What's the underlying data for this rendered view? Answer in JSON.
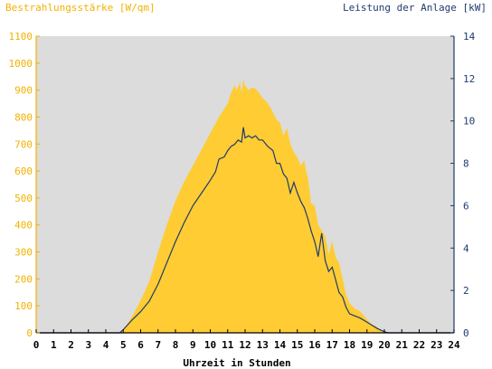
{
  "colors": {
    "irradiance": "#ffcc33",
    "power": "#1f3a6e",
    "plot_bg": "#dcdcdc",
    "left_axis_text": "#f2b100",
    "right_axis_text": "#1f3a6e",
    "x_axis_text": "#000000"
  },
  "chart_data": {
    "type": "area",
    "title": "",
    "xlabel": "Uhrzeit in Stunden",
    "ylabel_left": "Bestrahlungsstärke [W/qm]",
    "ylabel_right": "Leistung der Anlage [kW]",
    "xlim": [
      0,
      24
    ],
    "ylim_left": [
      0,
      1100
    ],
    "ylim_right": [
      0,
      14
    ],
    "x_ticks": [
      "0",
      "1",
      "2",
      "3",
      "4",
      "5",
      "6",
      "7",
      "8",
      "9",
      "10",
      "11",
      "12",
      "13",
      "14",
      "15",
      "16",
      "17",
      "18",
      "19",
      "20",
      "21",
      "22",
      "23",
      "24"
    ],
    "y_ticks_left": [
      "0",
      "100",
      "200",
      "300",
      "400",
      "500",
      "600",
      "700",
      "800",
      "900",
      "1000",
      "1100"
    ],
    "y_ticks_right": [
      "0",
      "2",
      "4",
      "6",
      "8",
      "10",
      "12",
      "14"
    ],
    "grid": false,
    "series": [
      {
        "name": "Bestrahlungsstärke [W/qm]",
        "axis": "left",
        "style": "area",
        "x": [
          0,
          4.8,
          5.0,
          5.2,
          5.5,
          6.0,
          6.5,
          7.0,
          7.5,
          8.0,
          8.5,
          9.0,
          9.5,
          10.0,
          10.5,
          10.8,
          11.0,
          11.2,
          11.4,
          11.5,
          11.6,
          11.7,
          11.8,
          11.9,
          12.0,
          12.2,
          12.4,
          12.6,
          12.8,
          13.0,
          13.2,
          13.5,
          13.8,
          14.0,
          14.2,
          14.4,
          14.6,
          14.8,
          15.0,
          15.2,
          15.4,
          15.5,
          15.6,
          15.8,
          16.0,
          16.2,
          16.4,
          16.6,
          16.8,
          17.0,
          17.2,
          17.4,
          17.6,
          17.8,
          18.0,
          18.3,
          18.6,
          19.0,
          19.3,
          19.5,
          19.7,
          20.0,
          20.2,
          20.5,
          24
        ],
        "y": [
          0,
          0,
          15,
          30,
          60,
          120,
          190,
          300,
          400,
          490,
          560,
          620,
          680,
          740,
          800,
          830,
          850,
          890,
          920,
          900,
          910,
          930,
          890,
          940,
          915,
          900,
          910,
          905,
          890,
          870,
          860,
          830,
          790,
          780,
          730,
          760,
          700,
          670,
          650,
          620,
          640,
          600,
          580,
          480,
          470,
          400,
          380,
          360,
          290,
          340,
          280,
          260,
          200,
          140,
          110,
          90,
          80,
          50,
          30,
          25,
          15,
          5,
          0,
          0,
          0
        ]
      },
      {
        "name": "Leistung der Anlage [kW]",
        "axis": "right",
        "style": "line",
        "x": [
          0,
          4.8,
          5.0,
          5.5,
          6.0,
          6.5,
          7.0,
          7.5,
          8.0,
          8.5,
          9.0,
          9.5,
          10.0,
          10.3,
          10.5,
          10.8,
          11.0,
          11.2,
          11.4,
          11.6,
          11.8,
          11.9,
          12.0,
          12.2,
          12.4,
          12.6,
          12.8,
          13.0,
          13.3,
          13.6,
          13.8,
          14.0,
          14.2,
          14.4,
          14.6,
          14.8,
          15.0,
          15.2,
          15.4,
          15.6,
          15.8,
          16.0,
          16.2,
          16.4,
          16.6,
          16.8,
          17.0,
          17.2,
          17.4,
          17.6,
          17.8,
          18.0,
          18.3,
          18.6,
          19.0,
          19.3,
          19.6,
          20.0,
          20.2,
          24
        ],
        "y": [
          0,
          0,
          0.15,
          0.6,
          1.0,
          1.5,
          2.3,
          3.3,
          4.3,
          5.2,
          6.0,
          6.6,
          7.2,
          7.6,
          8.2,
          8.3,
          8.6,
          8.8,
          8.9,
          9.1,
          9.0,
          9.7,
          9.2,
          9.3,
          9.2,
          9.3,
          9.1,
          9.1,
          8.8,
          8.6,
          8.0,
          8.0,
          7.5,
          7.3,
          6.6,
          7.1,
          6.6,
          6.2,
          5.9,
          5.4,
          4.8,
          4.3,
          3.6,
          4.7,
          3.4,
          2.9,
          3.1,
          2.5,
          1.9,
          1.7,
          1.2,
          0.9,
          0.8,
          0.7,
          0.5,
          0.35,
          0.2,
          0.05,
          0,
          0
        ]
      }
    ]
  }
}
